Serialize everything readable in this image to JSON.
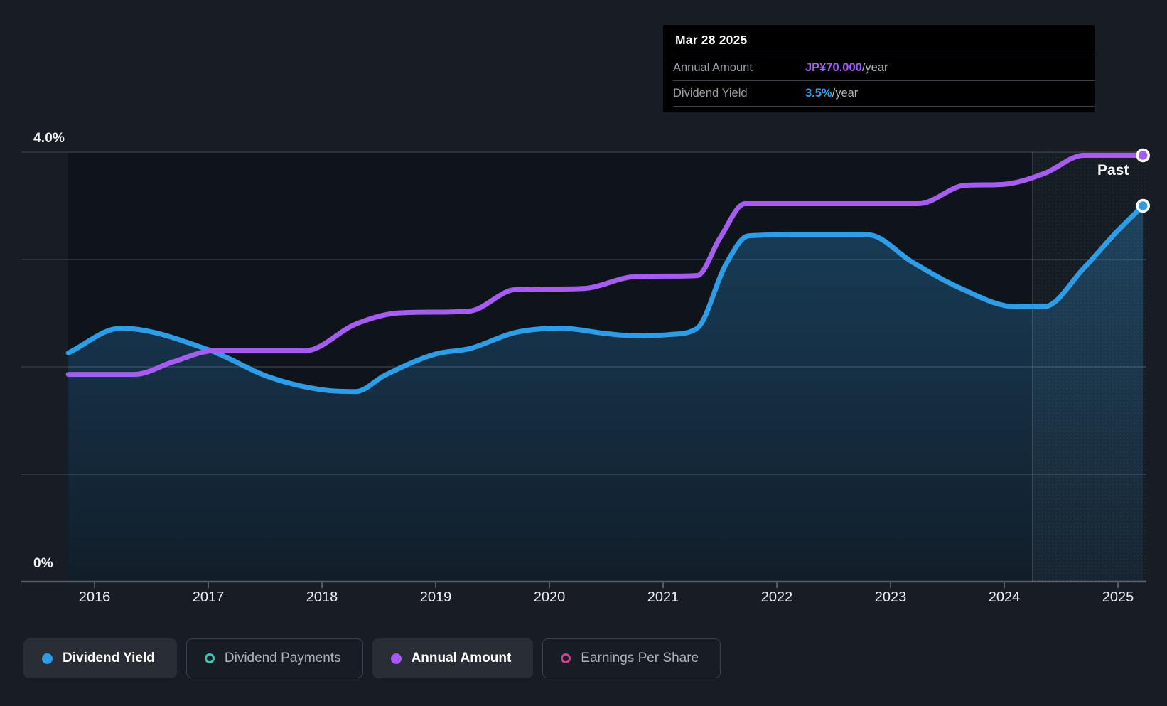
{
  "page": {
    "background": "#171c25"
  },
  "tooltip": {
    "date": "Mar 28 2025",
    "rows": [
      {
        "label": "Annual Amount",
        "value": "JP¥70.000",
        "suffix": "/year",
        "value_color": "#a45df0"
      },
      {
        "label": "Dividend Yield",
        "value": "3.5%",
        "suffix": "/year",
        "value_color": "#2e9fe9"
      }
    ]
  },
  "y_axis": {
    "top_label": "4.0%",
    "bottom_label": "0%"
  },
  "x_axis": {
    "years": [
      "2016",
      "2017",
      "2018",
      "2019",
      "2020",
      "2021",
      "2022",
      "2023",
      "2024",
      "2025"
    ]
  },
  "past_label": "Past",
  "legend": [
    {
      "label": "Dividend Yield",
      "marker": "dot",
      "color": "#2e9de8",
      "active": true
    },
    {
      "label": "Dividend Payments",
      "marker": "ring",
      "color": "#41c3b1",
      "active": false
    },
    {
      "label": "Annual Amount",
      "marker": "dot",
      "color": "#a55cef",
      "active": true
    },
    {
      "label": "Earnings Per Share",
      "marker": "ring",
      "color": "#c8458e",
      "active": false
    }
  ],
  "chart_data": {
    "type": "line",
    "x_range": [
      2015.77,
      2025.25
    ],
    "y_range_pct": [
      0,
      4.0
    ],
    "gridlines_pct": [
      4,
      3,
      2,
      1,
      0
    ],
    "y_tick_labels": {
      "top": "4.0%",
      "bottom": "0%"
    },
    "past_divider_year": 2024.25,
    "colors": {
      "grid": "#353b45",
      "axis": "#565b63",
      "plot_shade": "rgba(3,7,14,0.38)",
      "highlight": "rgba(170,200,240,0.045)",
      "divider": "rgba(255,255,255,0.22)"
    },
    "series": [
      {
        "name": "Dividend Yield",
        "color": "#2e9de8",
        "unit": "%",
        "area_fill": true,
        "end_marker": true,
        "end_value": "3.5%/year",
        "points": [
          [
            2015.77,
            2.13
          ],
          [
            2016.23,
            2.36
          ],
          [
            2017.0,
            2.16
          ],
          [
            2017.55,
            1.9
          ],
          [
            2018.05,
            1.78
          ],
          [
            2018.3,
            1.77
          ],
          [
            2018.55,
            1.92
          ],
          [
            2019.0,
            2.12
          ],
          [
            2019.3,
            2.17
          ],
          [
            2019.7,
            2.32
          ],
          [
            2020.1,
            2.36
          ],
          [
            2020.5,
            2.31
          ],
          [
            2020.75,
            2.29
          ],
          [
            2021.05,
            2.3
          ],
          [
            2021.3,
            2.36
          ],
          [
            2021.55,
            2.95
          ],
          [
            2021.75,
            3.22
          ],
          [
            2022.1,
            3.23
          ],
          [
            2022.8,
            3.23
          ],
          [
            2023.2,
            2.97
          ],
          [
            2023.6,
            2.74
          ],
          [
            2024.1,
            2.56
          ],
          [
            2024.35,
            2.56
          ],
          [
            2024.7,
            2.92
          ],
          [
            2025.0,
            3.27
          ],
          [
            2025.22,
            3.5
          ]
        ]
      },
      {
        "name": "Annual Amount",
        "color": "#a55cef",
        "unit": "JP¥/year",
        "display_scale": "percent-equivalent screen position",
        "area_fill": false,
        "end_marker": true,
        "end_value": "JP¥70.000/year",
        "points": [
          [
            2015.77,
            1.93
          ],
          [
            2016.35,
            1.93
          ],
          [
            2016.7,
            2.05
          ],
          [
            2017.05,
            2.15
          ],
          [
            2017.85,
            2.15
          ],
          [
            2018.3,
            2.4
          ],
          [
            2018.65,
            2.5
          ],
          [
            2019.3,
            2.52
          ],
          [
            2019.7,
            2.72
          ],
          [
            2020.3,
            2.73
          ],
          [
            2020.75,
            2.84
          ],
          [
            2021.3,
            2.85
          ],
          [
            2021.5,
            3.2
          ],
          [
            2021.72,
            3.52
          ],
          [
            2023.25,
            3.52
          ],
          [
            2023.65,
            3.69
          ],
          [
            2024.0,
            3.7
          ],
          [
            2024.35,
            3.8
          ],
          [
            2024.7,
            3.97
          ],
          [
            2025.22,
            3.97
          ]
        ]
      }
    ]
  }
}
